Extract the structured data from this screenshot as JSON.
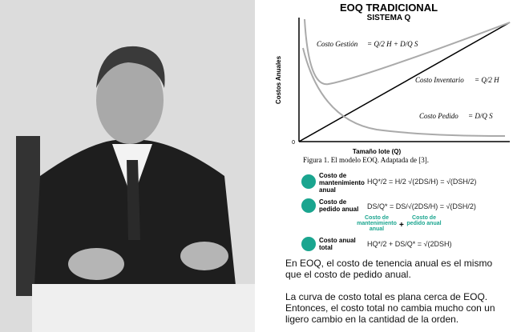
{
  "title": "EOQ TRADICIONAL",
  "subtitle": "SISTEMA Q",
  "chart": {
    "y_label": "Costos Anuales",
    "x_label": "Tamaño lote (Q)",
    "origin": "0",
    "curves": [
      {
        "name": "Costo Gestión",
        "formula": "= Q/2 H + D/Q S"
      },
      {
        "name": "Costo Inventario",
        "formula": "= Q/2 H"
      },
      {
        "name": "Costo Pedido",
        "formula": "= D/Q S"
      }
    ]
  },
  "caption": "Figura 1. El modelo EOQ. Adaptada de [3].",
  "table": {
    "rows": [
      {
        "label": "Costo de mantenimiento anual",
        "formula": "HQ*/2 = H/2 √(2DS/H) = √(DSH/2)"
      },
      {
        "label": "Costo de pedido anual",
        "formula": "DS/Q* = DS/√(2DS/H) = √(DSH/2)"
      },
      {
        "label": "Costo anual total",
        "formula": "HQ*/2 + DS/Q* = √(2DSH)"
      }
    ],
    "sum_note": {
      "left": "Costo de mantenimiento anual",
      "op": "+",
      "right": "Costo de pedido anual"
    }
  },
  "paragraphs": [
    "En EOQ, el costo de tenencia anual es el mismo que el costo de pedido anual.",
    "La curva de costo total es plana cerca de EOQ. Entonces, el costo total no cambia mucho con un ligero cambio en la cantidad de la orden."
  ]
}
